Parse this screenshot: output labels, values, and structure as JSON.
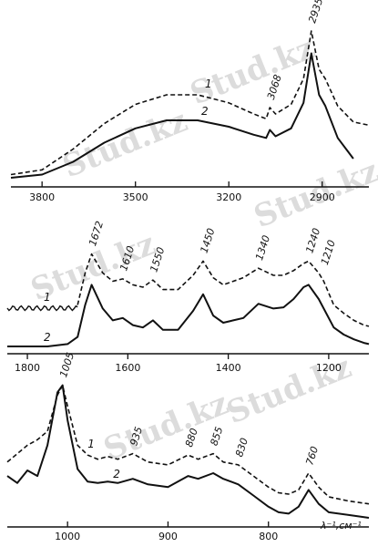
{
  "watermark": {
    "text": "Stud.kz"
  },
  "chart_data": [
    {
      "type": "line",
      "xlim": [
        3900,
        2750
      ],
      "x_ticks": [
        3800,
        3500,
        3200,
        2900
      ],
      "tick_labels": [
        "3800",
        "3500",
        "3200",
        "2900"
      ],
      "peak_labels": [
        "3068",
        "2935"
      ],
      "peaks": [
        3068,
        2935
      ],
      "series": [
        {
          "name": "1",
          "style": "dashed",
          "x": [
            3900,
            3800,
            3700,
            3600,
            3500,
            3400,
            3300,
            3200,
            3120,
            3080,
            3068,
            3050,
            3000,
            2960,
            2935,
            2910,
            2890,
            2850,
            2800,
            2750
          ],
          "y": [
            0.02,
            0.05,
            0.18,
            0.34,
            0.46,
            0.52,
            0.52,
            0.47,
            0.4,
            0.37,
            0.44,
            0.4,
            0.46,
            0.62,
            0.92,
            0.68,
            0.62,
            0.45,
            0.35,
            0.33
          ]
        },
        {
          "name": "2",
          "style": "solid",
          "x": [
            3900,
            3800,
            3700,
            3600,
            3500,
            3400,
            3300,
            3200,
            3120,
            3080,
            3068,
            3050,
            3000,
            2960,
            2935,
            2910,
            2890,
            2850,
            2800
          ],
          "y": [
            0.0,
            0.02,
            0.1,
            0.22,
            0.31,
            0.36,
            0.36,
            0.32,
            0.27,
            0.25,
            0.3,
            0.26,
            0.31,
            0.47,
            0.78,
            0.52,
            0.45,
            0.25,
            0.12
          ]
        }
      ]
    },
    {
      "type": "line",
      "xlim": [
        1840,
        1120
      ],
      "x_ticks": [
        1800,
        1600,
        1400,
        1200
      ],
      "tick_labels": [
        "1800",
        "1600",
        "1400",
        "1200"
      ],
      "peak_labels": [
        "1672",
        "1610",
        "1550",
        "1450",
        "1340",
        "1240",
        "1210"
      ],
      "peaks": [
        1672,
        1610,
        1550,
        1450,
        1340,
        1240,
        1210
      ],
      "series": [
        {
          "name": "1",
          "style": "dashed",
          "x": [
            1700,
            1685,
            1672,
            1650,
            1630,
            1610,
            1590,
            1570,
            1550,
            1530,
            1500,
            1470,
            1450,
            1430,
            1410,
            1390,
            1370,
            1340,
            1310,
            1290,
            1270,
            1250,
            1240,
            1220,
            1210,
            1190,
            1170,
            1150,
            1130,
            1120
          ],
          "y": [
            0.35,
            0.62,
            0.78,
            0.62,
            0.55,
            0.57,
            0.52,
            0.5,
            0.56,
            0.48,
            0.48,
            0.6,
            0.72,
            0.58,
            0.52,
            0.55,
            0.58,
            0.66,
            0.6,
            0.6,
            0.64,
            0.7,
            0.72,
            0.62,
            0.55,
            0.35,
            0.28,
            0.22,
            0.18,
            0.17
          ]
        },
        {
          "name": "2",
          "style": "solid",
          "x": [
            1840,
            1800,
            1760,
            1720,
            1700,
            1685,
            1672,
            1650,
            1630,
            1610,
            1590,
            1570,
            1550,
            1530,
            1500,
            1470,
            1450,
            1430,
            1410,
            1390,
            1370,
            1340,
            1310,
            1290,
            1270,
            1250,
            1240,
            1220,
            1210,
            1190,
            1170,
            1150,
            1130,
            1120
          ],
          "y": [
            0.0,
            0.0,
            0.0,
            0.02,
            0.08,
            0.35,
            0.52,
            0.32,
            0.22,
            0.24,
            0.18,
            0.16,
            0.22,
            0.14,
            0.14,
            0.3,
            0.44,
            0.26,
            0.2,
            0.22,
            0.24,
            0.36,
            0.32,
            0.33,
            0.4,
            0.5,
            0.52,
            0.4,
            0.32,
            0.16,
            0.1,
            0.06,
            0.03,
            0.02
          ]
        }
      ]
    },
    {
      "type": "line",
      "xlim": [
        1060,
        700
      ],
      "x_ticks": [
        1000,
        900,
        800
      ],
      "tick_labels": [
        "1000",
        "900",
        "800"
      ],
      "xlabel": "λ⁻¹,см⁻¹",
      "peak_labels": [
        "1005",
        "935",
        "880",
        "855",
        "830",
        "760"
      ],
      "peaks": [
        1005,
        935,
        880,
        855,
        830,
        760
      ],
      "series": [
        {
          "name": "1",
          "style": "dashed",
          "x": [
            1060,
            1040,
            1030,
            1020,
            1010,
            1005,
            1000,
            990,
            980,
            970,
            960,
            950,
            935,
            920,
            900,
            880,
            870,
            855,
            845,
            830,
            815,
            800,
            790,
            780,
            770,
            760,
            750,
            740,
            720,
            700
          ],
          "y": [
            0.4,
            0.52,
            0.56,
            0.62,
            0.88,
            0.95,
            0.8,
            0.52,
            0.45,
            0.42,
            0.44,
            0.42,
            0.46,
            0.4,
            0.38,
            0.45,
            0.42,
            0.46,
            0.4,
            0.38,
            0.3,
            0.22,
            0.18,
            0.17,
            0.2,
            0.32,
            0.22,
            0.15,
            0.12,
            0.1
          ]
        },
        {
          "name": "2",
          "style": "solid",
          "x": [
            1060,
            1050,
            1040,
            1030,
            1020,
            1010,
            1005,
            1000,
            990,
            980,
            970,
            960,
            950,
            935,
            920,
            900,
            880,
            870,
            855,
            845,
            830,
            815,
            800,
            790,
            780,
            770,
            760,
            750,
            740,
            720,
            700
          ],
          "y": [
            0.3,
            0.25,
            0.34,
            0.3,
            0.52,
            0.9,
            0.95,
            0.7,
            0.35,
            0.26,
            0.25,
            0.26,
            0.25,
            0.28,
            0.24,
            0.22,
            0.3,
            0.28,
            0.32,
            0.28,
            0.24,
            0.16,
            0.08,
            0.04,
            0.03,
            0.08,
            0.2,
            0.1,
            0.04,
            0.02,
            0.0
          ]
        }
      ]
    }
  ]
}
